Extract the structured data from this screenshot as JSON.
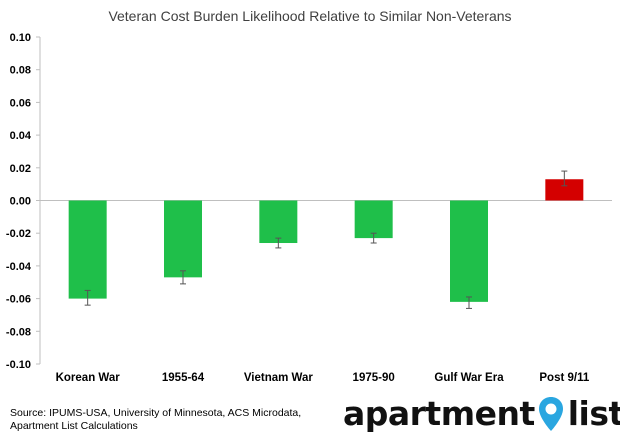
{
  "chart_data": {
    "type": "bar",
    "title": "Veteran Cost Burden Likelihood Relative to Similar Non-Veterans",
    "categories": [
      "Korean War",
      "1955-64",
      "Vietnam War",
      "1975-90",
      "Gulf War Era",
      "Post 9/11"
    ],
    "values": [
      -0.06,
      -0.047,
      -0.026,
      -0.023,
      -0.062,
      0.013
    ],
    "error_low": [
      -0.064,
      -0.051,
      -0.029,
      -0.026,
      -0.066,
      0.009
    ],
    "error_high": [
      -0.055,
      -0.043,
      -0.023,
      -0.02,
      -0.059,
      0.018
    ],
    "bar_colors": [
      "#1fbf4a",
      "#1fbf4a",
      "#1fbf4a",
      "#1fbf4a",
      "#1fbf4a",
      "#d40000"
    ],
    "ylim": [
      -0.1,
      0.1
    ],
    "yticks": [
      "0.10",
      "0.08",
      "0.06",
      "0.04",
      "0.02",
      "0.00",
      "-0.02",
      "-0.04",
      "-0.06",
      "-0.08",
      "-0.10"
    ],
    "ytick_values": [
      0.1,
      0.08,
      0.06,
      0.04,
      0.02,
      0.0,
      -0.02,
      -0.04,
      -0.06,
      -0.08,
      -0.1
    ],
    "xlabel": "",
    "ylabel": "",
    "grid": false
  },
  "footer": {
    "source_line1": "Source: IPUMS-USA, University of Minnesota, ACS Microdata,",
    "source_line2": "Apartment List Calculations",
    "logo_word1": "apartment",
    "logo_word2": "list",
    "logo_pin_color": "#2aa6e0"
  }
}
